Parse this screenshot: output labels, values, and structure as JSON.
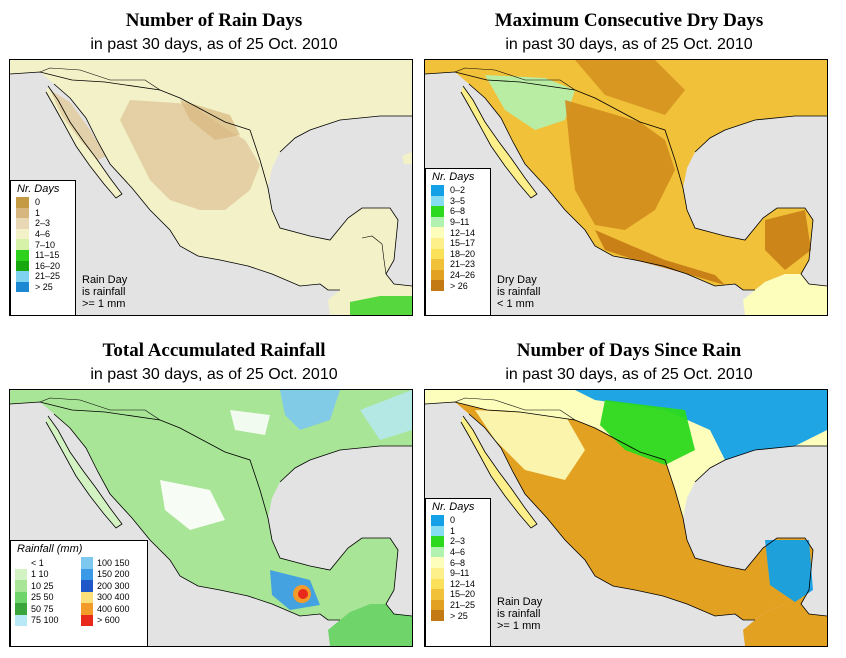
{
  "panels": {
    "rain_days": {
      "title": "Number of Rain Days",
      "subtitle": "in past 30 days, as of  25 Oct. 2010",
      "legend_title": "Nr. Days",
      "legend": [
        {
          "label": "0",
          "color": "#c49b42"
        },
        {
          "label": "1",
          "color": "#d7b77f"
        },
        {
          "label": "2–3",
          "color": "#e9d8b5"
        },
        {
          "label": "4–6",
          "color": "#f3f1c7"
        },
        {
          "label": "7–10",
          "color": "#d6f2a8"
        },
        {
          "label": "11–15",
          "color": "#2ed11c"
        },
        {
          "label": "16–20",
          "color": "#17a70e"
        },
        {
          "label": "21–25",
          "color": "#7fd3f1"
        },
        {
          "label": "> 25",
          "color": "#1c87d3"
        }
      ],
      "note": [
        "Rain Day",
        "is rainfall",
        ">= 1 mm"
      ]
    },
    "dry_days": {
      "title": "Maximum Consecutive Dry Days",
      "subtitle": "in past 30 days, as of  25 Oct. 2010",
      "legend_title": "Nr. Days",
      "legend": [
        {
          "label": "0–2",
          "color": "#13a0e6"
        },
        {
          "label": "3–5",
          "color": "#86dcf0"
        },
        {
          "label": "6–8",
          "color": "#2cd91c"
        },
        {
          "label": "9–11",
          "color": "#b2f2b0"
        },
        {
          "label": "12–14",
          "color": "#fdfdbc"
        },
        {
          "label": "15–17",
          "color": "#fdf08a"
        },
        {
          "label": "18–20",
          "color": "#fbe05a"
        },
        {
          "label": "21–23",
          "color": "#f2c13a"
        },
        {
          "label": "24–26",
          "color": "#e3a122"
        },
        {
          "label": "> 26",
          "color": "#c47a14"
        }
      ],
      "note": [
        "Dry Day",
        "is rainfall",
        "< 1 mm"
      ]
    },
    "total_rain": {
      "title": "Total Accumulated Rainfall",
      "subtitle": "in past 30 days, as of  25 Oct. 2010",
      "legend_title": "Rainfall (mm)",
      "legend": [
        {
          "label": "< 1",
          "color": "#ffffff"
        },
        {
          "label": "100   150",
          "color": "#7dc8ee"
        },
        {
          "label": "1   10",
          "color": "#d3f3c3"
        },
        {
          "label": "150   200",
          "color": "#3a9ae8"
        },
        {
          "label": "10   25",
          "color": "#a8e596"
        },
        {
          "label": "200   300",
          "color": "#1f56c8"
        },
        {
          "label": "25   50",
          "color": "#6fd46a"
        },
        {
          "label": "300   400",
          "color": "#fde07a"
        },
        {
          "label": "50   75",
          "color": "#3aa53a"
        },
        {
          "label": "400   600",
          "color": "#f29a2a"
        },
        {
          "label": "75   100",
          "color": "#b7e9f7"
        },
        {
          "label": "> 600",
          "color": "#e8281a"
        }
      ]
    },
    "days_since": {
      "title": "Number of Days Since Rain",
      "subtitle": "in past 30 days, as of  25 Oct. 2010",
      "legend_title": "Nr. Days",
      "legend": [
        {
          "label": "0",
          "color": "#13a0e6"
        },
        {
          "label": "1",
          "color": "#86dcf0"
        },
        {
          "label": "2–3",
          "color": "#2cd91c"
        },
        {
          "label": "4–6",
          "color": "#b2f2b0"
        },
        {
          "label": "6–8",
          "color": "#fdfdbc"
        },
        {
          "label": "9–11",
          "color": "#fdf08a"
        },
        {
          "label": "12–14",
          "color": "#fbe05a"
        },
        {
          "label": "15–20",
          "color": "#f2c13a"
        },
        {
          "label": "21–25",
          "color": "#e3a122"
        },
        {
          "label": "> 25",
          "color": "#c47a14"
        }
      ],
      "note": [
        "Rain Day",
        "is rainfall",
        ">= 1 mm"
      ]
    }
  },
  "colors": {
    "ocean": "#e3e3e3",
    "rain_days_land": "#f3f1c7",
    "rain_days_dry": "#e2cca0",
    "dry_days_land": "#f2c13a",
    "dry_days_dark": "#d08c1c",
    "total_rain_land": "#a8e596",
    "days_since_land": "#e3a122",
    "days_since_wet": "#2cd91c",
    "days_since_blue": "#13a0e6"
  }
}
